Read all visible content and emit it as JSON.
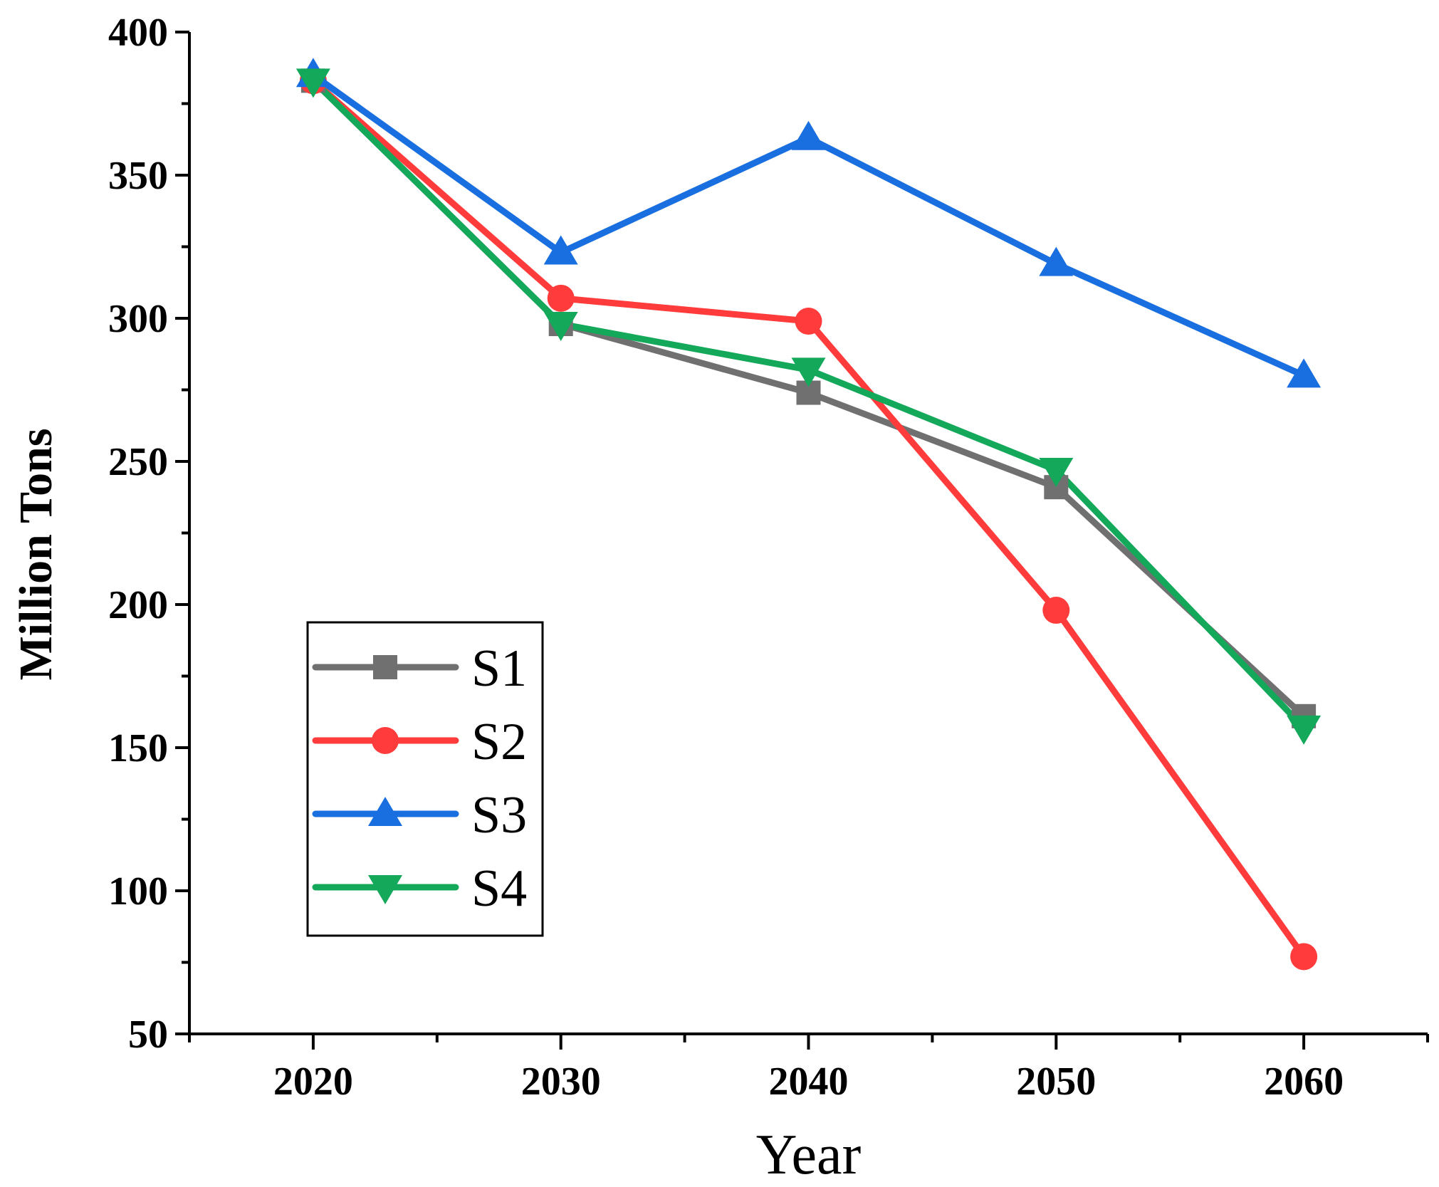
{
  "chart_data": {
    "type": "line",
    "title": "",
    "xlabel": "Year",
    "ylabel": "Million Tons",
    "x": [
      2020,
      2030,
      2040,
      2050,
      2060
    ],
    "x_ticks": [
      "2020",
      "2030",
      "2040",
      "2050",
      "2060"
    ],
    "xlim": [
      2015,
      2065
    ],
    "y_ticks": [
      "50",
      "100",
      "150",
      "200",
      "250",
      "300",
      "350",
      "400"
    ],
    "ylim": [
      50,
      400
    ],
    "grid": false,
    "legend_position": "bottom-left",
    "series": [
      {
        "name": "S1",
        "color": "#707070",
        "marker": "square",
        "values": [
          383,
          298,
          274,
          241,
          161
        ]
      },
      {
        "name": "S2",
        "color": "#ff3b3b",
        "marker": "circle",
        "values": [
          383,
          307,
          299,
          198,
          77
        ]
      },
      {
        "name": "S3",
        "color": "#1a6fe0",
        "marker": "triangle-up",
        "values": [
          385,
          323,
          363,
          319,
          280
        ]
      },
      {
        "name": "S4",
        "color": "#14a85a",
        "marker": "triangle-down",
        "values": [
          383,
          298,
          282,
          247,
          157
        ]
      }
    ]
  }
}
